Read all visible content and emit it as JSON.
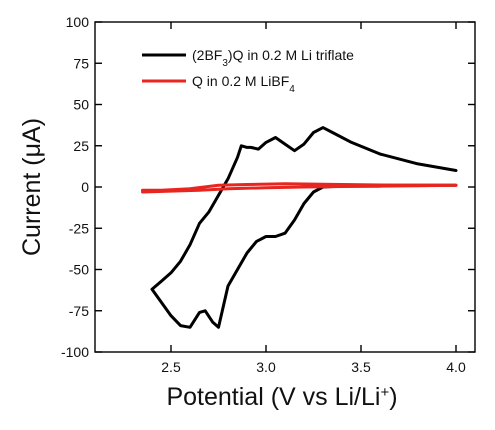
{
  "chart_data": {
    "type": "line",
    "title": "",
    "xlabel": {
      "text": "Potential (V vs Li/Li",
      "superscript": "+",
      "suffix": ")"
    },
    "ylabel": "Current (μA)",
    "xlim": [
      2.1,
      4.1
    ],
    "ylim": [
      -100,
      100
    ],
    "x_ticks": [
      2.5,
      3.0,
      3.5,
      4.0
    ],
    "x_tick_labels": [
      "2.5",
      "3.0",
      "3.5",
      "4.0"
    ],
    "y_ticks": [
      -100,
      -75,
      -50,
      -25,
      0,
      25,
      50,
      75,
      100
    ],
    "y_tick_labels": [
      "-100",
      "-75",
      "-50",
      "-25",
      "0",
      "25",
      "50",
      "75",
      "100"
    ],
    "grid": false,
    "legend_position": "top-left",
    "series": [
      {
        "name": "(2BF3)Q in 0.2 M Li triflate",
        "legend_parts": {
          "before": "(2BF",
          "sub": "3",
          "after": ")Q in 0.2 M Li triflate"
        },
        "color": "#000000",
        "points": [
          [
            4.0,
            10
          ],
          [
            3.8,
            14
          ],
          [
            3.6,
            20
          ],
          [
            3.45,
            27
          ],
          [
            3.35,
            33
          ],
          [
            3.3,
            36
          ],
          [
            3.25,
            33
          ],
          [
            3.2,
            26
          ],
          [
            3.15,
            22
          ],
          [
            3.1,
            26
          ],
          [
            3.05,
            30
          ],
          [
            3.0,
            27
          ],
          [
            2.96,
            23
          ],
          [
            2.92,
            24
          ],
          [
            2.9,
            24
          ],
          [
            2.87,
            25
          ],
          [
            2.85,
            18
          ],
          [
            2.8,
            5
          ],
          [
            2.75,
            -5
          ],
          [
            2.7,
            -15
          ],
          [
            2.65,
            -22
          ],
          [
            2.6,
            -35
          ],
          [
            2.55,
            -45
          ],
          [
            2.5,
            -52
          ],
          [
            2.45,
            -57
          ],
          [
            2.4,
            -62
          ],
          [
            2.45,
            -70
          ],
          [
            2.5,
            -78
          ],
          [
            2.55,
            -84
          ],
          [
            2.6,
            -85
          ],
          [
            2.65,
            -76
          ],
          [
            2.68,
            -75
          ],
          [
            2.72,
            -82
          ],
          [
            2.75,
            -85
          ],
          [
            2.8,
            -60
          ],
          [
            2.85,
            -50
          ],
          [
            2.9,
            -40
          ],
          [
            2.95,
            -33
          ],
          [
            3.0,
            -30
          ],
          [
            3.05,
            -30
          ],
          [
            3.1,
            -28
          ],
          [
            3.15,
            -20
          ],
          [
            3.2,
            -10
          ],
          [
            3.25,
            -3
          ],
          [
            3.3,
            0
          ],
          [
            3.5,
            1
          ],
          [
            3.75,
            1
          ],
          [
            4.0,
            1
          ]
        ]
      },
      {
        "name": "Q in 0.2 M LiBF4",
        "legend_parts": {
          "before": "Q in 0.2 M LiBF",
          "sub": "4",
          "after": ""
        },
        "color": "#e8251f",
        "points": [
          [
            2.35,
            -3
          ],
          [
            2.5,
            -2.5
          ],
          [
            2.65,
            -2
          ],
          [
            2.8,
            -1
          ],
          [
            3.0,
            -0.5
          ],
          [
            3.2,
            0
          ],
          [
            3.4,
            0.3
          ],
          [
            3.6,
            0.5
          ],
          [
            3.8,
            0.8
          ],
          [
            4.0,
            1
          ],
          [
            3.7,
            1
          ],
          [
            3.4,
            1.5
          ],
          [
            3.1,
            2
          ],
          [
            2.9,
            1.5
          ],
          [
            2.75,
            1
          ],
          [
            2.6,
            -1
          ],
          [
            2.45,
            -2
          ],
          [
            2.35,
            -2
          ]
        ]
      }
    ]
  }
}
